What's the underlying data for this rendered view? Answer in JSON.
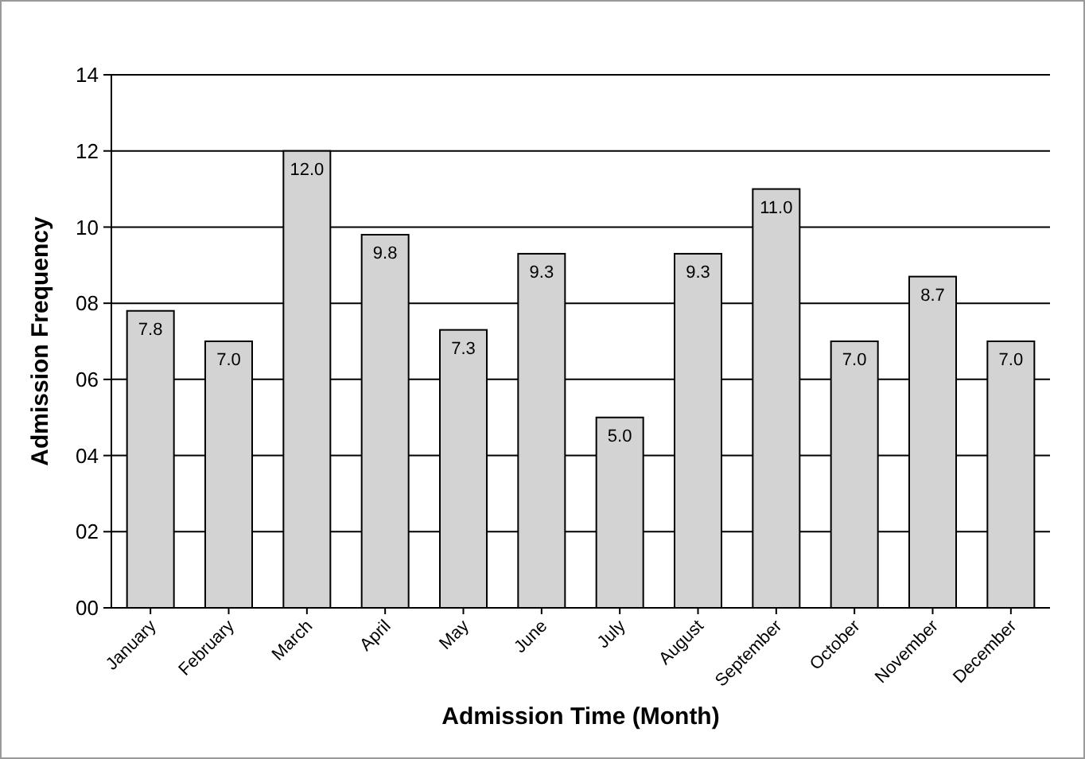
{
  "chart_data": {
    "type": "bar",
    "xlabel": "Admission Time (Month)",
    "ylabel": "Admission Frequency",
    "categories": [
      "January",
      "February",
      "March",
      "April",
      "May",
      "June",
      "July",
      "August",
      "September",
      "October",
      "November",
      "December"
    ],
    "values": [
      7.8,
      7.0,
      12.0,
      9.8,
      7.3,
      9.3,
      5.0,
      9.3,
      11.0,
      7.0,
      8.7,
      7.0
    ],
    "value_labels": [
      "7.8",
      "7.0",
      "12.0",
      "9.8",
      "7.3",
      "9.3",
      "5.0",
      "9.3",
      "11.0",
      "7.0",
      "8.7",
      "7.0"
    ],
    "color": "#d3d3d3",
    "ylim": [
      0,
      14
    ],
    "yticks": [
      {
        "value": 0,
        "label": "00"
      },
      {
        "value": 2,
        "label": "02"
      },
      {
        "value": 4,
        "label": "04"
      },
      {
        "value": 6,
        "label": "06"
      },
      {
        "value": 8,
        "label": "08"
      },
      {
        "value": 10,
        "label": "10"
      },
      {
        "value": 12,
        "label": "12"
      },
      {
        "value": 14,
        "label": "14"
      }
    ],
    "grid": "y"
  }
}
